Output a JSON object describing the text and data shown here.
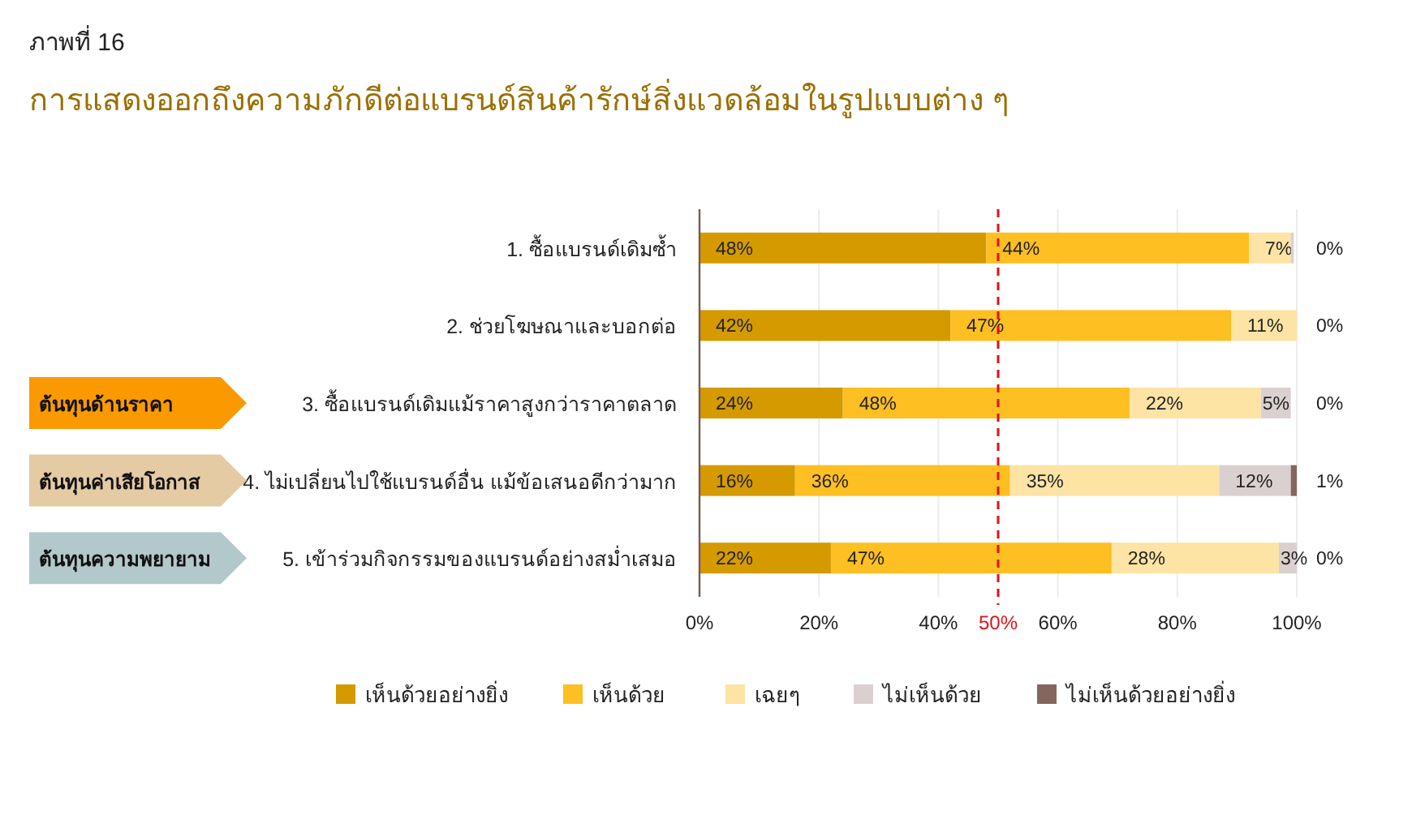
{
  "chart_data": {
    "type": "bar",
    "orientation": "horizontal",
    "stacked": true,
    "subtitle": "ภาพที่ 16",
    "title": "การแสดงออกถึงความภักดีต่อแบรนด์สินค้ารักษ์สิ่งแวดล้อมในรูปแบบต่าง ๆ",
    "categories": [
      "1. ซื้อแบรนด์เดิมซ้ำ",
      "2. ช่วยโฆษณาและบอกต่อ",
      "3. ซื้อแบรนด์เดิมแม้ราคาสูงกว่าราคาตลาด",
      "4. ไม่เปลี่ยนไปใช้แบรนด์อื่น แม้ข้อเสนอดีกว่ามาก",
      "5. เข้าร่วมกิจกรรมของแบรนด์อย่างสม่ำเสมอ"
    ],
    "series": [
      {
        "name": "เห็นด้วยอย่างยิ่ง",
        "color": "#d49a00",
        "values": [
          48,
          42,
          24,
          16,
          22
        ],
        "value_labels": [
          "48%",
          "42%",
          "24%",
          "16%",
          "22%"
        ]
      },
      {
        "name": "เห็นด้วย",
        "color": "#fdbf21",
        "values": [
          44,
          47,
          48,
          36,
          47
        ],
        "value_labels": [
          "44%",
          "47%",
          "48%",
          "36%",
          "47%"
        ]
      },
      {
        "name": "เฉยๆ",
        "color": "#fde3a4",
        "values": [
          7,
          11,
          22,
          35,
          28
        ],
        "value_labels": [
          "7%",
          "11%",
          "22%",
          "35%",
          "28%"
        ]
      },
      {
        "name": "ไม่เห็นด้วย",
        "color": "#dbd0d0",
        "values": [
          0.5,
          0,
          5,
          12,
          3
        ],
        "value_labels": [
          null,
          null,
          "5%",
          "12%",
          "3%"
        ]
      },
      {
        "name": "ไม่เห็นด้วยอย่างยิ่ง",
        "color": "#85665f",
        "values": [
          0,
          0,
          0,
          1,
          0
        ],
        "value_labels": [
          "0%",
          "0%",
          "0%",
          "1%",
          "0%"
        ]
      }
    ],
    "xlim": [
      0,
      100
    ],
    "xticks": [
      {
        "value": 0,
        "label": "0%"
      },
      {
        "value": 20,
        "label": "20%"
      },
      {
        "value": 40,
        "label": "40%"
      },
      {
        "value": 60,
        "label": "60%"
      },
      {
        "value": 80,
        "label": "80%"
      },
      {
        "value": 100,
        "label": "100%"
      }
    ],
    "ref_lines": [
      {
        "axis": "x",
        "value": 50,
        "label": "50%",
        "color": "#e0101a",
        "line_style": "dashed"
      }
    ],
    "annotations": [
      "ต้นทุนด้านราคา",
      "ต้นทุนค่าเสียโอกาส",
      "ต้นทุนความพยายาม"
    ],
    "grid": "x",
    "legend": "bottom"
  }
}
